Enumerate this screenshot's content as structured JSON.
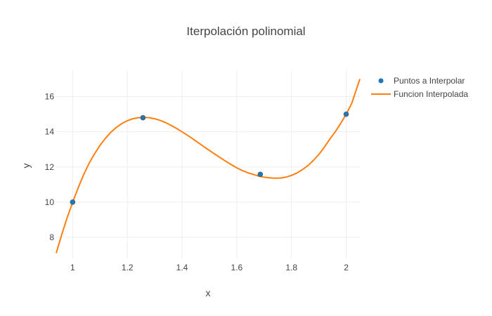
{
  "chart_data": {
    "type": "scatter",
    "title": "Iterpolación polinomial",
    "xlabel": "x",
    "ylabel": "y",
    "xlim": [
      0.94,
      2.05
    ],
    "ylim": [
      6.8,
      17.5
    ],
    "x_ticks": [
      1,
      1.2,
      1.4,
      1.6,
      1.8,
      2
    ],
    "x_tick_labels": [
      "1",
      "1.2",
      "1.4",
      "1.6",
      "1.8",
      "2"
    ],
    "y_ticks": [
      8,
      10,
      12,
      14,
      16
    ],
    "y_tick_labels": [
      "8",
      "10",
      "12",
      "14",
      "16"
    ],
    "grid": true,
    "legend_position": "top-right, outside plot",
    "series": [
      {
        "name": "Puntos a Interpolar",
        "mode": "markers",
        "color": "#1f77b4",
        "x": [
          1.0,
          1.257,
          1.686,
          2.0
        ],
        "y": [
          10.0,
          14.8,
          11.58,
          15.0
        ]
      },
      {
        "name": "Funcion Interpolada",
        "mode": "lines",
        "color": "#ff7f0e",
        "x": [
          0.94,
          0.96,
          0.98,
          1.0,
          1.02,
          1.04,
          1.06,
          1.08,
          1.1,
          1.12,
          1.14,
          1.16,
          1.18,
          1.2,
          1.22,
          1.24,
          1.26,
          1.28,
          1.3,
          1.32,
          1.34,
          1.36,
          1.38,
          1.4,
          1.42,
          1.44,
          1.46,
          1.48,
          1.5,
          1.52,
          1.54,
          1.56,
          1.58,
          1.6,
          1.62,
          1.64,
          1.66,
          1.68,
          1.7,
          1.72,
          1.74,
          1.76,
          1.78,
          1.8,
          1.82,
          1.84,
          1.86,
          1.88,
          1.9,
          1.92,
          1.94,
          1.96,
          1.98,
          2.0,
          2.02,
          2.05
        ],
        "y": [
          7.1,
          8.15,
          9.12,
          10.0,
          10.8,
          11.55,
          12.2,
          12.75,
          13.23,
          13.63,
          13.98,
          14.25,
          14.47,
          14.63,
          14.74,
          14.8,
          14.82,
          14.8,
          14.74,
          14.65,
          14.52,
          14.36,
          14.19,
          14.0,
          13.8,
          13.59,
          13.37,
          13.15,
          12.94,
          12.73,
          12.52,
          12.32,
          12.13,
          11.95,
          11.8,
          11.67,
          11.58,
          11.48,
          11.42,
          11.38,
          11.36,
          11.37,
          11.42,
          11.52,
          11.66,
          11.85,
          12.08,
          12.37,
          12.71,
          13.12,
          13.58,
          14.0,
          14.48,
          15.0,
          15.6,
          17.0
        ]
      }
    ]
  }
}
